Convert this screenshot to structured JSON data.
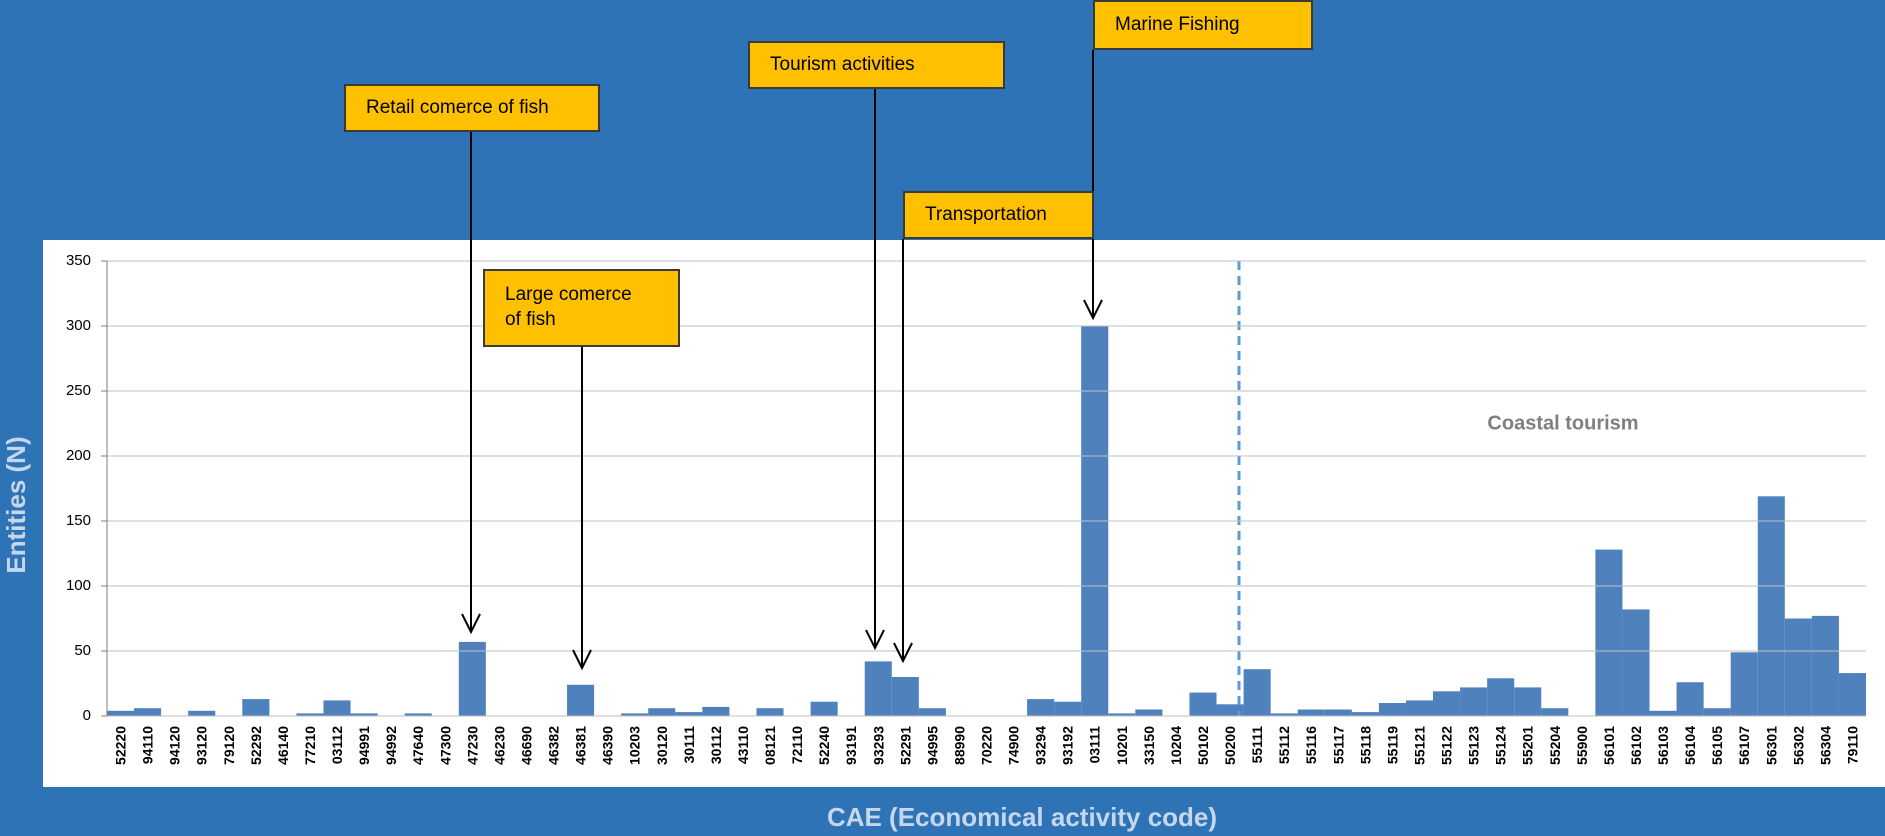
{
  "chart_data": {
    "type": "bar",
    "xlabel": "CAE (Economical activity code)",
    "ylabel": "Entities (N)",
    "categories": [
      "52220",
      "94110",
      "94120",
      "93120",
      "79120",
      "52292",
      "46140",
      "77210",
      "03112",
      "94991",
      "94992",
      "47640",
      "47300",
      "47230",
      "46230",
      "46690",
      "46382",
      "46381",
      "46390",
      "10203",
      "30120",
      "30111",
      "30112",
      "43110",
      "08121",
      "72110",
      "52240",
      "93191",
      "93293",
      "52291",
      "94995",
      "88990",
      "70220",
      "74900",
      "93294",
      "93192",
      "03111",
      "10201",
      "33150",
      "10204",
      "50102",
      "50200",
      "55111",
      "55112",
      "55116",
      "55117",
      "55118",
      "55119",
      "55121",
      "55122",
      "55123",
      "55124",
      "55201",
      "55204",
      "55900",
      "56101",
      "56102",
      "56103",
      "56104",
      "56105",
      "56107",
      "56301",
      "56302",
      "56304",
      "79110"
    ],
    "values": [
      4,
      6,
      0,
      4,
      0,
      13,
      0,
      2,
      12,
      2,
      0,
      2,
      0,
      57,
      0,
      0,
      0,
      24,
      0,
      2,
      6,
      3,
      7,
      0,
      6,
      0,
      11,
      0,
      42,
      30,
      6,
      0,
      0,
      0,
      13,
      11,
      300,
      2,
      5,
      0,
      18,
      9,
      36,
      2,
      5,
      5,
      3,
      10,
      12,
      19,
      22,
      29,
      22,
      6,
      0,
      128,
      82,
      4,
      26,
      6,
      49,
      169,
      75,
      77,
      33
    ],
    "color": "#4f81bd",
    "ylim": [
      0,
      350
    ],
    "yticks": [
      0,
      50,
      100,
      150,
      200,
      250,
      300,
      350
    ],
    "grid": true,
    "annotations": [
      "Retail comerce of fish",
      "Large comerce of fish",
      "Tourism activities",
      "Transportation",
      "Marine Fishing",
      "Coastal tourism"
    ]
  }
}
